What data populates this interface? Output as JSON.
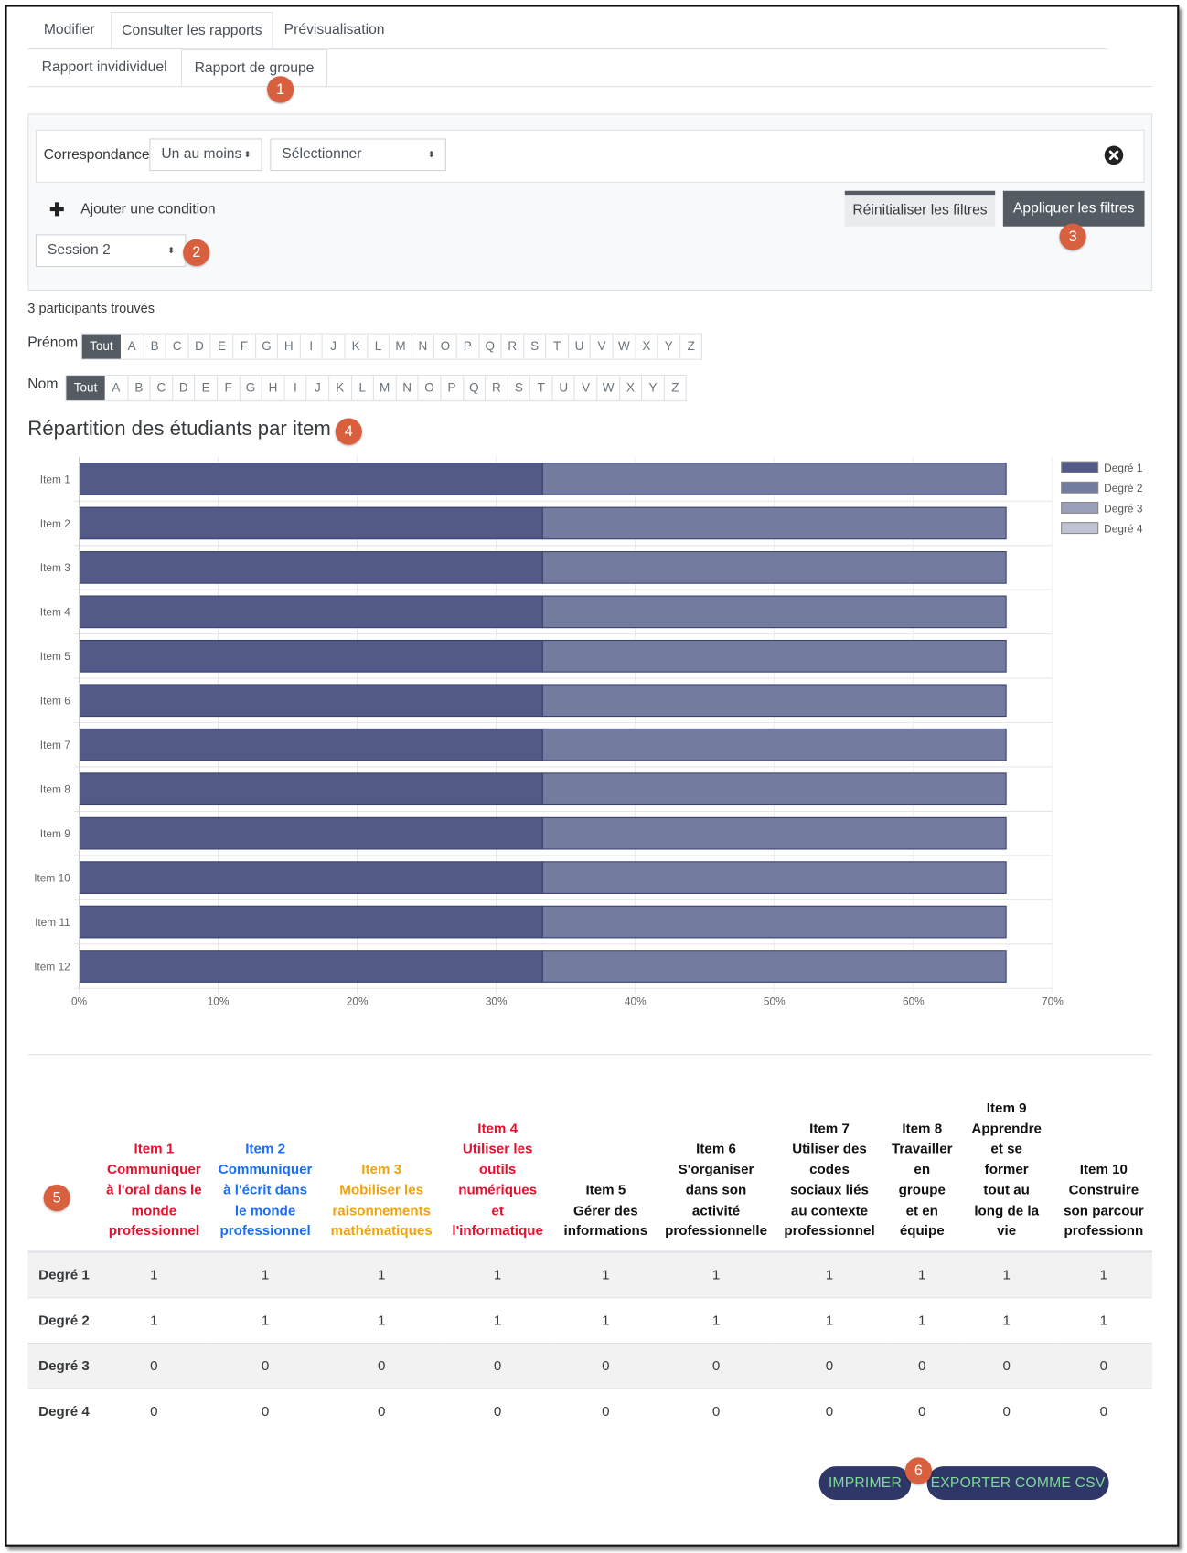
{
  "tabs_main": [
    {
      "label": "Modifier",
      "active": false
    },
    {
      "label": "Consulter les rapports",
      "active": true
    },
    {
      "label": "Prévisualisation",
      "active": false
    }
  ],
  "tabs_sub": [
    {
      "label": "Rapport invidividuel",
      "active": false
    },
    {
      "label": "Rapport de groupe",
      "active": true
    }
  ],
  "callouts": [
    "1",
    "2",
    "3",
    "4",
    "5",
    "6"
  ],
  "filters": {
    "match_label": "Correspondance",
    "match_value": "Un au moins",
    "field_value": "Sélectionner",
    "add_condition": "Ajouter une condition",
    "reset_label": "Réinitialiser les filtres",
    "apply_label": "Appliquer les filtres",
    "session_value": "Session 2"
  },
  "participants_found": "3 participants trouvés",
  "initials": {
    "firstname_label": "Prénom",
    "lastname_label": "Nom",
    "all_label": "Tout",
    "letters": [
      "A",
      "B",
      "C",
      "D",
      "E",
      "F",
      "G",
      "H",
      "I",
      "J",
      "K",
      "L",
      "M",
      "N",
      "O",
      "P",
      "Q",
      "R",
      "S",
      "T",
      "U",
      "V",
      "W",
      "X",
      "Y",
      "Z"
    ]
  },
  "chart_heading": "Répartition des étudiants par item :",
  "chart_data": {
    "type": "bar",
    "orientation": "horizontal",
    "stacked": true,
    "categories": [
      "Item 1",
      "Item 2",
      "Item 3",
      "Item 4",
      "Item 5",
      "Item 6",
      "Item 7",
      "Item 8",
      "Item 9",
      "Item 10",
      "Item 11",
      "Item 12"
    ],
    "series": [
      {
        "name": "Degré 1",
        "color": "#535a87",
        "values": [
          33.33,
          33.33,
          33.33,
          33.33,
          33.33,
          33.33,
          33.33,
          33.33,
          33.33,
          33.33,
          33.33,
          33.33
        ]
      },
      {
        "name": "Degré 2",
        "color": "#737b9f",
        "values": [
          33.33,
          33.33,
          33.33,
          33.33,
          33.33,
          33.33,
          33.33,
          33.33,
          33.33,
          33.33,
          33.33,
          33.33
        ]
      },
      {
        "name": "Degré 3",
        "color": "#9a9fbb",
        "values": [
          0,
          0,
          0,
          0,
          0,
          0,
          0,
          0,
          0,
          0,
          0,
          0
        ]
      },
      {
        "name": "Degré 4",
        "color": "#bfc2d5",
        "values": [
          0,
          0,
          0,
          0,
          0,
          0,
          0,
          0,
          0,
          0,
          0,
          0
        ]
      }
    ],
    "xlim": [
      0,
      70
    ],
    "xticks": [
      "0%",
      "10%",
      "20%",
      "30%",
      "40%",
      "50%",
      "60%",
      "70%"
    ],
    "grid": true,
    "legend": "top-right"
  },
  "table": {
    "columns": [
      {
        "label": "Item 1\nCommuniquer\nà l'oral dans le\nmonde\nprofessionnel",
        "color": "#e8102e"
      },
      {
        "label": "Item 2\nCommuniquer\nà l'écrit dans\nle monde\nprofessionnel",
        "color": "#1a6ef5"
      },
      {
        "label": "Item 3\nMobiliser les\nraisonnements\nmathématiques",
        "color": "#f0a30a"
      },
      {
        "label": "Item 4\nUtiliser les\noutils\nnumériques\net\nl'informatique",
        "color": "#e8102e"
      },
      {
        "label": "Item 5\nGérer des\ninformations",
        "color": "#111111"
      },
      {
        "label": "Item 6\nS'organiser\ndans son\nactivité\nprofessionnelle",
        "color": "#111111"
      },
      {
        "label": "Item 7\nUtiliser des\ncodes\nsociaux liés\nau contexte\nprofessionnel",
        "color": "#111111"
      },
      {
        "label": "Item 8\nTravailler\nen\ngroupe\net en\néquipe",
        "color": "#111111"
      },
      {
        "label": "Item 9\nApprendre\net se\nformer\ntout au\nlong de la\nvie",
        "color": "#111111"
      },
      {
        "label": "Item 10\nConstruire\nson parcour\nprofessionn",
        "color": "#111111"
      }
    ],
    "rows": [
      {
        "label": "Degré 1",
        "values": [
          "1",
          "1",
          "1",
          "1",
          "1",
          "1",
          "1",
          "1",
          "1",
          "1"
        ]
      },
      {
        "label": "Degré 2",
        "values": [
          "1",
          "1",
          "1",
          "1",
          "1",
          "1",
          "1",
          "1",
          "1",
          "1"
        ]
      },
      {
        "label": "Degré 3",
        "values": [
          "0",
          "0",
          "0",
          "0",
          "0",
          "0",
          "0",
          "0",
          "0",
          "0"
        ]
      },
      {
        "label": "Degré 4",
        "values": [
          "0",
          "0",
          "0",
          "0",
          "0",
          "0",
          "0",
          "0",
          "0",
          "0"
        ]
      }
    ]
  },
  "actions": {
    "print_label": "IMPRIMER",
    "export_label": "EXPORTER COMME CSV"
  }
}
